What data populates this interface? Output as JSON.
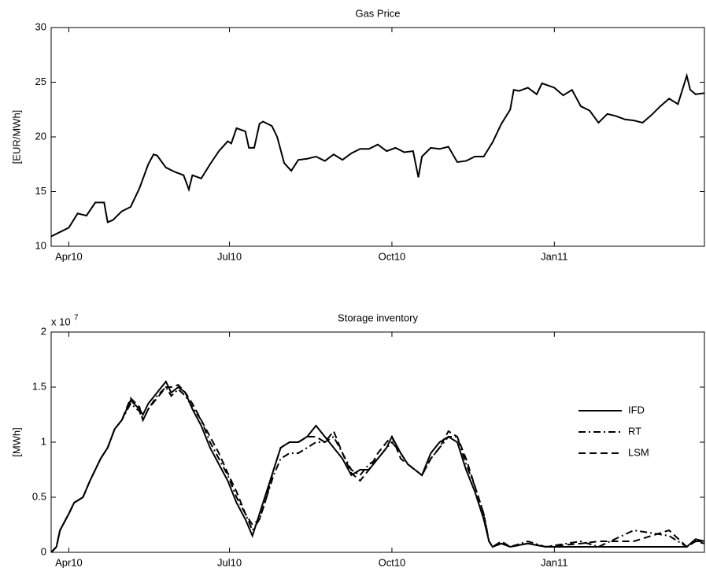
{
  "chart_data": [
    {
      "type": "line",
      "title": "Gas Price",
      "ylabel": "[EUR/MWh]",
      "xlim": [
        -10,
        360
      ],
      "xticks": [
        {
          "value": 0,
          "label": "Apr10"
        },
        {
          "value": 91,
          "label": "Jul10"
        },
        {
          "value": 183,
          "label": "Oct10"
        },
        {
          "value": 275,
          "label": "Jan11"
        }
      ],
      "ylim": [
        10,
        30
      ],
      "yticks": [
        10,
        15,
        20,
        25,
        30
      ],
      "grid": false,
      "x": [
        -10,
        -5,
        0,
        5,
        10,
        15,
        20,
        22,
        25,
        30,
        35,
        40,
        45,
        48,
        50,
        55,
        60,
        65,
        68,
        70,
        75,
        80,
        85,
        90,
        92,
        95,
        100,
        102,
        105,
        108,
        110,
        115,
        118,
        122,
        126,
        130,
        135,
        140,
        145,
        150,
        155,
        160,
        165,
        170,
        175,
        180,
        185,
        190,
        195,
        198,
        200,
        205,
        210,
        215,
        220,
        225,
        230,
        235,
        240,
        245,
        250,
        252,
        255,
        260,
        265,
        268,
        275,
        280,
        285,
        290,
        295,
        300,
        305,
        310,
        315,
        320,
        325,
        330,
        335,
        340,
        345,
        350,
        352,
        355,
        360
      ],
      "series": [
        {
          "name": "Gas Price",
          "color": "#000000",
          "dash": "solid",
          "values": [
            10.9,
            11.3,
            11.7,
            13.0,
            12.8,
            14.0,
            14.0,
            12.2,
            12.4,
            13.2,
            13.6,
            15.3,
            17.5,
            18.4,
            18.3,
            17.2,
            16.8,
            16.5,
            15.2,
            16.5,
            16.2,
            17.5,
            18.7,
            19.6,
            19.4,
            20.8,
            20.5,
            19.0,
            19.0,
            21.2,
            21.4,
            21.0,
            20.0,
            17.6,
            16.9,
            17.9,
            18.0,
            18.2,
            17.8,
            18.4,
            17.9,
            18.5,
            18.9,
            18.9,
            19.3,
            18.7,
            19.0,
            18.6,
            18.7,
            16.3,
            18.2,
            19.0,
            18.9,
            19.1,
            17.7,
            17.8,
            18.2,
            18.2,
            19.5,
            21.2,
            22.5,
            24.3,
            24.2,
            24.5,
            23.9,
            24.9,
            24.5,
            23.8,
            24.3,
            22.8,
            22.4,
            21.3,
            22.1,
            21.9,
            21.6,
            21.5,
            21.3,
            22.0,
            22.8,
            23.5,
            23.0,
            25.6,
            24.3,
            23.9,
            24.0
          ]
        }
      ]
    },
    {
      "type": "line",
      "title": "Storage inventory",
      "ylabel": "[MWh]",
      "axis_multiplier": "x 10",
      "axis_multiplier_exponent": "7",
      "xlim": [
        -10,
        360
      ],
      "xticks": [
        {
          "value": 0,
          "label": "Apr10"
        },
        {
          "value": 91,
          "label": "Jul10"
        },
        {
          "value": 183,
          "label": "Oct10"
        },
        {
          "value": 275,
          "label": "Jan11"
        }
      ],
      "ylim": [
        0,
        2
      ],
      "yticks": [
        0,
        0.5,
        1,
        1.5,
        2
      ],
      "grid": false,
      "legend": "east",
      "x": [
        -10,
        -7,
        -5,
        0,
        3,
        8,
        12,
        18,
        22,
        26,
        30,
        35,
        40,
        42,
        45,
        50,
        55,
        58,
        62,
        66,
        70,
        75,
        80,
        85,
        90,
        95,
        100,
        104,
        108,
        112,
        116,
        120,
        125,
        130,
        135,
        140,
        145,
        150,
        155,
        160,
        165,
        170,
        175,
        180,
        183,
        188,
        192,
        196,
        200,
        205,
        210,
        215,
        220,
        225,
        230,
        235,
        238,
        240,
        245,
        250,
        260,
        270,
        290,
        300,
        320,
        340,
        350,
        355,
        360
      ],
      "series": [
        {
          "name": "IFD",
          "color": "#000000",
          "dash": "solid",
          "values": [
            0,
            0.05,
            0.2,
            0.35,
            0.45,
            0.5,
            0.65,
            0.85,
            0.95,
            1.12,
            1.2,
            1.38,
            1.3,
            1.25,
            1.35,
            1.45,
            1.55,
            1.45,
            1.5,
            1.45,
            1.3,
            1.15,
            0.95,
            0.8,
            0.65,
            0.45,
            0.3,
            0.15,
            0.35,
            0.55,
            0.75,
            0.95,
            1.0,
            1.0,
            1.05,
            1.15,
            1.05,
            0.95,
            0.85,
            0.7,
            0.75,
            0.75,
            0.85,
            0.95,
            1.05,
            0.9,
            0.8,
            0.75,
            0.7,
            0.9,
            1.0,
            1.05,
            1.0,
            0.75,
            0.55,
            0.3,
            0.1,
            0.05,
            0.08,
            0.05,
            0.08,
            0.05,
            0.05,
            0.05,
            0.05,
            0.05,
            0.05,
            0.12,
            0.1
          ]
        },
        {
          "name": "RT",
          "color": "#000000",
          "dash": "dashdot",
          "values": [
            0,
            0.05,
            0.2,
            0.35,
            0.45,
            0.5,
            0.65,
            0.85,
            0.95,
            1.12,
            1.2,
            1.35,
            1.28,
            1.2,
            1.3,
            1.42,
            1.5,
            1.42,
            1.48,
            1.42,
            1.32,
            1.2,
            1.0,
            0.85,
            0.7,
            0.5,
            0.35,
            0.2,
            0.3,
            0.5,
            0.7,
            0.85,
            0.9,
            0.9,
            0.95,
            1.0,
            1.0,
            1.05,
            0.9,
            0.75,
            0.7,
            0.8,
            0.85,
            0.95,
            1.0,
            0.9,
            0.8,
            0.75,
            0.7,
            0.85,
            0.95,
            1.05,
            1.05,
            0.8,
            0.6,
            0.35,
            0.1,
            0.05,
            0.08,
            0.05,
            0.1,
            0.05,
            0.1,
            0.05,
            0.2,
            0.15,
            0.05,
            0.1,
            0.1
          ]
        },
        {
          "name": "LSM",
          "color": "#000000",
          "dash": "dashed",
          "values": [
            0,
            0.05,
            0.2,
            0.35,
            0.45,
            0.5,
            0.65,
            0.85,
            0.95,
            1.12,
            1.2,
            1.4,
            1.32,
            1.2,
            1.3,
            1.4,
            1.5,
            1.5,
            1.52,
            1.45,
            1.35,
            1.2,
            1.05,
            0.9,
            0.72,
            0.55,
            0.35,
            0.25,
            0.3,
            0.5,
            0.75,
            0.95,
            1.0,
            1.0,
            1.05,
            1.05,
            1.0,
            1.1,
            0.9,
            0.72,
            0.65,
            0.75,
            0.9,
            1.0,
            1.05,
            0.85,
            0.8,
            0.75,
            0.7,
            0.85,
            0.95,
            1.1,
            1.05,
            0.85,
            0.6,
            0.35,
            0.1,
            0.05,
            0.1,
            0.05,
            0.08,
            0.05,
            0.08,
            0.1,
            0.1,
            0.2,
            0.05,
            0.1,
            0.08
          ]
        }
      ]
    }
  ]
}
